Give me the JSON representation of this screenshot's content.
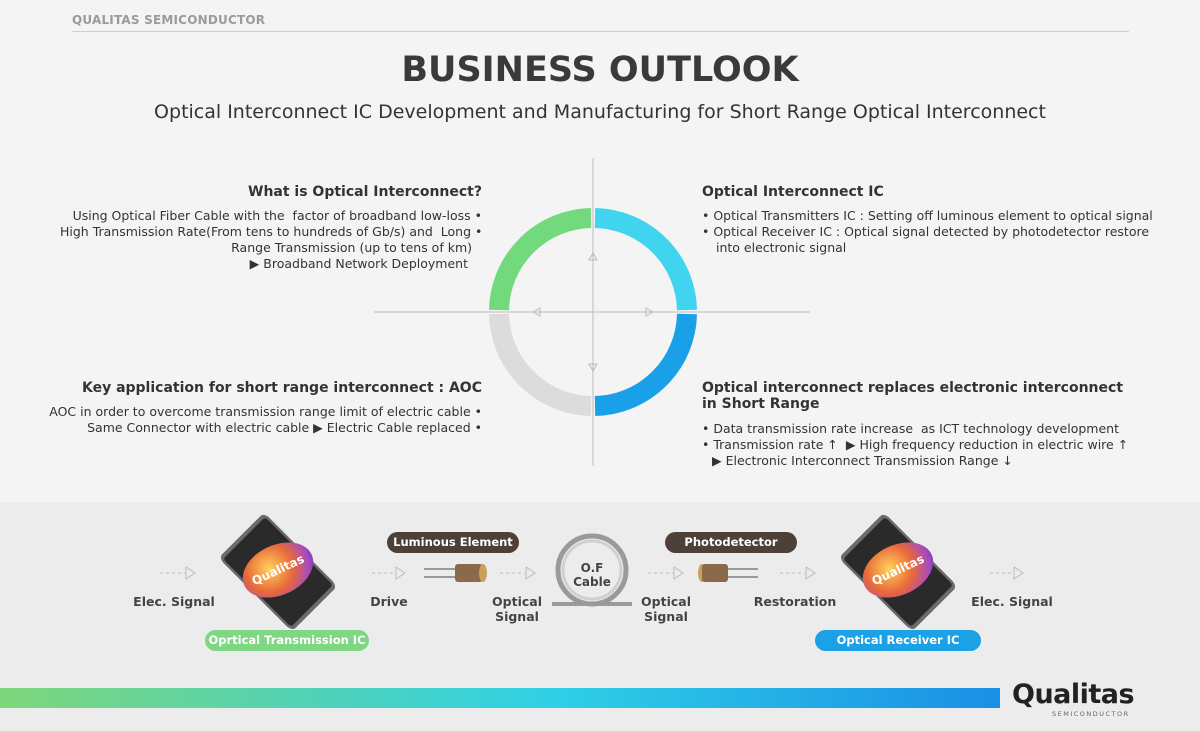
{
  "header": {
    "company": "QUALITAS SEMICONDUCTOR",
    "title": "BUSINESS OUTLOOK",
    "subtitle": "Optical Interconnect IC Development and Manufacturing for Short Range Optical Interconnect"
  },
  "quadrants": [
    {
      "title": [
        "What is Optical Interconnect?"
      ],
      "lines": [
        "Using Optical Fiber Cable with the  factor of broadband low-loss •",
        "High Transmission Rate(From tens to hundreds of Gb/s) and  Long •",
        "Range Transmission (up to tens of km)",
        "▶ Broadband Network Deployment"
      ]
    },
    {
      "title": [
        "Optical Interconnect IC"
      ],
      "lines": [
        "• Optical Transmitters IC : Setting off luminous element to optical signal",
        "• Optical Receiver IC : Optical signal detected by photodetector restore",
        "into electronic signal"
      ]
    },
    {
      "title": [
        "Key application for short range interconnect : AOC"
      ],
      "lines": [
        "AOC in order to overcome transmission range limit of electric cable •",
        "Same Connector with electric cable ▶ Electric Cable replaced •"
      ]
    },
    {
      "title": [
        "Optical interconnect replaces electronic interconnect",
        "in Short Range"
      ],
      "lines": [
        "• Data transmission rate increase  as ICT technology development",
        "• Transmission rate ↑  ▶ High frequency reduction in electric wire ↑",
        "▶ Electronic Interconnect Transmission Range ↓"
      ]
    }
  ],
  "flow": {
    "labels": [
      "Elec. Signal",
      "Drive",
      "Optical Signal",
      "Optical Signal",
      "Restoration",
      "Elec. Signal"
    ],
    "badges": [
      "Luminous Element",
      "Photodetector",
      "Oprtical Transmission IC",
      "Optical Receiver IC"
    ],
    "cable": "O.F Cable",
    "chip": "Qualitas"
  },
  "logo": {
    "name": "Qualitas",
    "sub": "SEMICONDUCTOR"
  }
}
